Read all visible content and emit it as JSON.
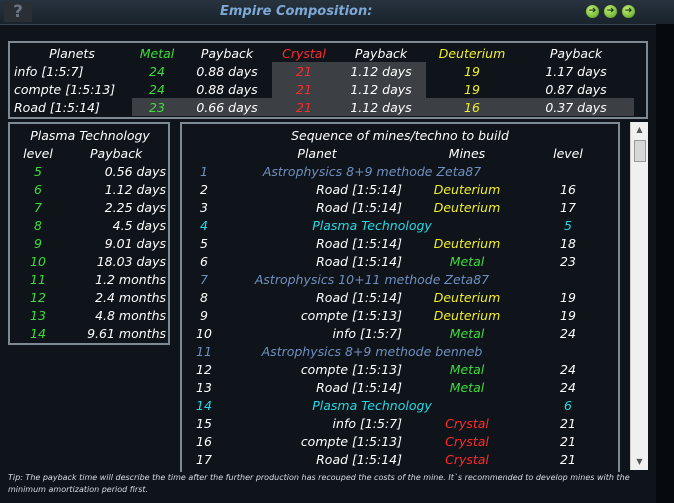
{
  "window": {
    "title": "Empire Composition:",
    "help_label": "?",
    "buttons": [
      "➔",
      "➔",
      "➔"
    ]
  },
  "planets_table": {
    "headers": [
      "Planets",
      "Metal",
      "Payback",
      "Crystal",
      "Payback",
      "Deuterium",
      "Payback"
    ],
    "rows": [
      {
        "planet": "info [1:5:7]",
        "metal": "24",
        "metal_payback": "0.88 days",
        "crystal": "21",
        "crystal_payback": "1.12 days",
        "deut": "19",
        "deut_payback": "1.17 days"
      },
      {
        "planet": "compte [1:5:13]",
        "metal": "24",
        "metal_payback": "0.88 days",
        "crystal": "21",
        "crystal_payback": "1.12 days",
        "deut": "19",
        "deut_payback": "0.87 days"
      },
      {
        "planet": "Road [1:5:14]",
        "metal": "23",
        "metal_payback": "0.66 days",
        "crystal": "21",
        "crystal_payback": "1.12 days",
        "deut": "16",
        "deut_payback": "0.37 days"
      }
    ]
  },
  "plasma_table": {
    "title": "Plasma Technology",
    "headers": [
      "level",
      "Payback"
    ],
    "rows": [
      {
        "level": "5",
        "payback": "0.56 days"
      },
      {
        "level": "6",
        "payback": "1.12 days"
      },
      {
        "level": "7",
        "payback": "2.25 days"
      },
      {
        "level": "8",
        "payback": "4.5 days"
      },
      {
        "level": "9",
        "payback": "9.01 days"
      },
      {
        "level": "10",
        "payback": "18.03 days"
      },
      {
        "level": "11",
        "payback": "1.2 months"
      },
      {
        "level": "12",
        "payback": "2.4 months"
      },
      {
        "level": "13",
        "payback": "4.8 months"
      },
      {
        "level": "14",
        "payback": "9.61 months"
      }
    ]
  },
  "sequence_table": {
    "title": "Sequence of mines/techno to build",
    "headers": [
      "Planet",
      "Mines",
      "level"
    ],
    "rows": [
      {
        "kind": "tech",
        "num": "1",
        "name": "Astrophysics 8+9 methode Zeta87"
      },
      {
        "kind": "mine",
        "num": "2",
        "planet": "Road [1:5:14]",
        "mine": "Deuterium",
        "level": "16"
      },
      {
        "kind": "mine",
        "num": "3",
        "planet": "Road [1:5:14]",
        "mine": "Deuterium",
        "level": "17"
      },
      {
        "kind": "plasma",
        "num": "4",
        "name": "Plasma Technology",
        "level": "5"
      },
      {
        "kind": "mine",
        "num": "5",
        "planet": "Road [1:5:14]",
        "mine": "Deuterium",
        "level": "18"
      },
      {
        "kind": "mine",
        "num": "6",
        "planet": "Road [1:5:14]",
        "mine": "Metal",
        "level": "23"
      },
      {
        "kind": "tech",
        "num": "7",
        "name": "Astrophysics 10+11 methode Zeta87"
      },
      {
        "kind": "mine",
        "num": "8",
        "planet": "Road [1:5:14]",
        "mine": "Deuterium",
        "level": "19"
      },
      {
        "kind": "mine",
        "num": "9",
        "planet": "compte [1:5:13]",
        "mine": "Deuterium",
        "level": "19"
      },
      {
        "kind": "mine",
        "num": "10",
        "planet": "info [1:5:7]",
        "mine": "Metal",
        "level": "24"
      },
      {
        "kind": "tech",
        "num": "11",
        "name": "Astrophysics 8+9 methode benneb"
      },
      {
        "kind": "mine",
        "num": "12",
        "planet": "compte [1:5:13]",
        "mine": "Metal",
        "level": "24"
      },
      {
        "kind": "mine",
        "num": "13",
        "planet": "Road [1:5:14]",
        "mine": "Metal",
        "level": "24"
      },
      {
        "kind": "plasma",
        "num": "14",
        "name": "Plasma Technology",
        "level": "6"
      },
      {
        "kind": "mine",
        "num": "15",
        "planet": "info [1:5:7]",
        "mine": "Crystal",
        "level": "21"
      },
      {
        "kind": "mine",
        "num": "16",
        "planet": "compte [1:5:13]",
        "mine": "Crystal",
        "level": "21"
      },
      {
        "kind": "mine",
        "num": "17",
        "planet": "Road [1:5:14]",
        "mine": "Crystal",
        "level": "21"
      }
    ]
  },
  "tip": "Tip: The payback time will describe the time after the further production has recouped the costs of the mine. It`s recommended to develop mines with the minimum amortization period first.",
  "colors": {
    "metal": "#3ddc3d",
    "crystal": "#ff2a2a",
    "deuterium": "#f2ee2c",
    "tech": "#6f8fc2",
    "plasma": "#26d9e6"
  }
}
